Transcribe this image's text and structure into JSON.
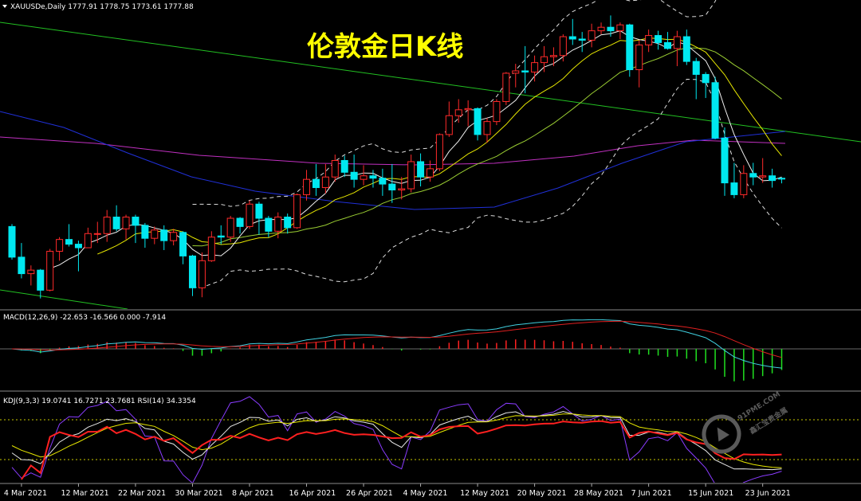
{
  "title": "伦敦金日K线",
  "header": {
    "symbol": "XAUUSDe,Daily"
  },
  "indicators": {
    "macd": "MACD(12,26,9) -22.653 -16.566 0.000 -7.914",
    "kdj": "KDJ(9,3,3) 19.0741 16.7271 23.7681",
    "rsi": "RSI(14) 34.3354"
  },
  "watermark": {
    "brand": "91PME.COM",
    "name": "鑫汇宝贵金属"
  },
  "chart_data": {
    "type": "candlestick",
    "categories": [
      null,
      "4 Mar 2021",
      null,
      null,
      null,
      null,
      null,
      "12 Mar 2021",
      null,
      null,
      null,
      null,
      null,
      "22 Mar 2021",
      null,
      null,
      null,
      null,
      null,
      "30 Mar 2021",
      null,
      null,
      null,
      null,
      null,
      "8 Apr 2021",
      null,
      null,
      null,
      null,
      null,
      "16 Apr 2021",
      null,
      null,
      null,
      null,
      null,
      "26 Apr 2021",
      null,
      null,
      null,
      null,
      null,
      "4 May 2021",
      null,
      null,
      null,
      null,
      null,
      "12 May 2021",
      null,
      null,
      null,
      null,
      null,
      "20 May 2021",
      null,
      null,
      null,
      null,
      null,
      "28 May 2021",
      null,
      null,
      null,
      null,
      null,
      "7 Jun 2021",
      null,
      null,
      null,
      null,
      null,
      "15 Jun 2021",
      null,
      null,
      null,
      null,
      null,
      "23 Jun 2021",
      null,
      null
    ],
    "open": [
      1737,
      1711,
      1697,
      1700,
      1683,
      1716,
      1726,
      1722,
      1719,
      1731,
      1731,
      1745,
      1735,
      1745,
      1738,
      1727,
      1734,
      1725,
      1732,
      1712,
      1685,
      1708,
      1729,
      1728,
      1744,
      1737,
      1756,
      1744,
      1733,
      1745,
      1736,
      1764,
      1777,
      1770,
      1779,
      1793,
      1783,
      1777,
      1780,
      1778,
      1773,
      1768,
      1769,
      1792,
      1779,
      1786,
      1815,
      1831,
      1836,
      1837,
      1815,
      1826,
      1843,
      1867,
      1869,
      1868,
      1876,
      1881,
      1882,
      1898,
      1896,
      1895,
      1903,
      1906,
      1903,
      1908,
      1870,
      1891,
      1899,
      1893,
      1888,
      1898,
      1877,
      1866,
      1859,
      1812,
      1774,
      1764,
      1782,
      1779,
      1780,
      1777.91
    ],
    "high": [
      1739,
      1723,
      1704,
      1701,
      1718,
      1728,
      1739,
      1725,
      1736,
      1741,
      1751,
      1755,
      1747,
      1747,
      1740,
      1737,
      1738,
      1735,
      1733,
      1713,
      1715,
      1733,
      1738,
      1746,
      1745,
      1759,
      1758,
      1746,
      1749,
      1748,
      1765,
      1785,
      1790,
      1790,
      1798,
      1797,
      1798,
      1789,
      1785,
      1786,
      1790,
      1779,
      1798,
      1799,
      1793,
      1816,
      1843,
      1845,
      1844,
      1838,
      1829,
      1845,
      1868,
      1875,
      1890,
      1882,
      1890,
      1889,
      1900,
      1913,
      1902,
      1909,
      1910,
      1916,
      1910,
      1909,
      1895,
      1904,
      1903,
      1902,
      1903,
      1904,
      1880,
      1868,
      1864,
      1821,
      1791,
      1789,
      1791,
      1795,
      1786,
      1778.75
    ],
    "low": [
      1709,
      1693,
      1687,
      1676,
      1682,
      1708,
      1720,
      1699,
      1719,
      1723,
      1724,
      1733,
      1726,
      1723,
      1719,
      1722,
      1717,
      1721,
      1705,
      1678,
      1677,
      1707,
      1722,
      1724,
      1731,
      1735,
      1730,
      1728,
      1727,
      1731,
      1735,
      1759,
      1763,
      1765,
      1775,
      1779,
      1770,
      1772,
      1770,
      1763,
      1757,
      1760,
      1766,
      1771,
      1775,
      1784,
      1813,
      1825,
      1822,
      1810,
      1808,
      1823,
      1840,
      1855,
      1850,
      1860,
      1868,
      1873,
      1877,
      1891,
      1885,
      1889,
      1900,
      1898,
      1896,
      1864,
      1855,
      1885,
      1887,
      1887,
      1873,
      1874,
      1845,
      1846,
      1811,
      1763,
      1761,
      1761,
      1772,
      1774,
      1770,
      1773.61
    ],
    "close": [
      1711,
      1697,
      1700,
      1683,
      1716,
      1726,
      1722,
      1719,
      1731,
      1731,
      1745,
      1735,
      1745,
      1738,
      1727,
      1734,
      1725,
      1732,
      1712,
      1685,
      1708,
      1728,
      1728,
      1744,
      1737,
      1756,
      1744,
      1733,
      1745,
      1736,
      1764,
      1777,
      1770,
      1779,
      1793,
      1783,
      1777,
      1780,
      1778,
      1773,
      1768,
      1769,
      1792,
      1779,
      1786,
      1815,
      1831,
      1836,
      1837,
      1815,
      1826,
      1843,
      1867,
      1869,
      1868,
      1876,
      1881,
      1882,
      1898,
      1896,
      1895,
      1903,
      1906,
      1903,
      1908,
      1870,
      1891,
      1899,
      1893,
      1888,
      1898,
      1877,
      1866,
      1859,
      1812,
      1774,
      1764,
      1782,
      1779,
      1780,
      1776,
      1777.88
    ],
    "up_color": "#ff2a2a",
    "down_color": "#00e8f0",
    "ylim": [
      1667,
      1921
    ]
  }
}
